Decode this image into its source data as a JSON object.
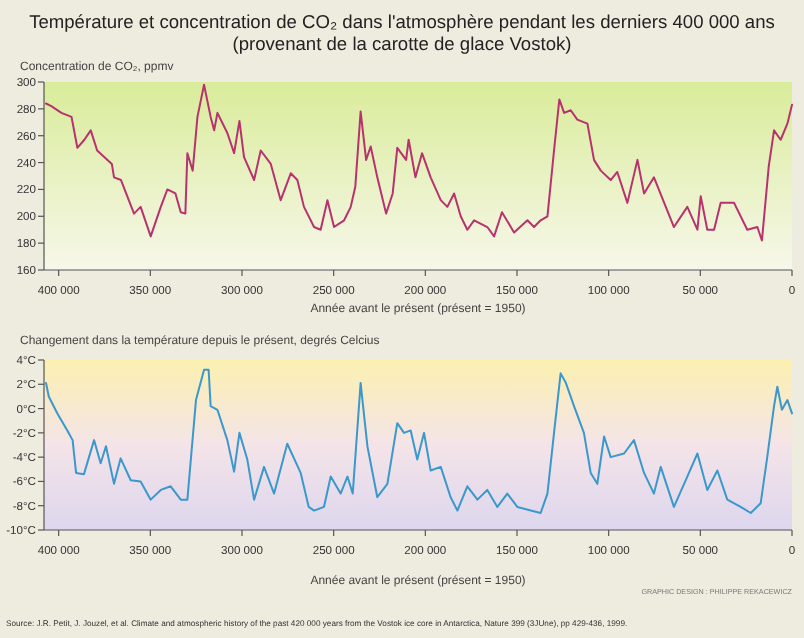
{
  "chart_data": [
    {
      "type": "line",
      "title": "Température et concentration de CO₂ dans l'atmosphère pendant les derniers 400 000 ans",
      "subtitle": "(provenant de la carotte de glace Vostok)",
      "ylabel": "Concentration de CO₂, ppmv",
      "xlabel": "Année avant le présent (présent = 1950)",
      "xlim": [
        408000,
        0
      ],
      "xticks": [
        {
          "value": 400000,
          "label": "400 000"
        },
        {
          "value": 350000,
          "label": "350 000"
        },
        {
          "value": 300000,
          "label": "300 000"
        },
        {
          "value": 250000,
          "label": "250 000"
        },
        {
          "value": 200000,
          "label": "200 000"
        },
        {
          "value": 150000,
          "label": "150 000"
        },
        {
          "value": 100000,
          "label": "100 000"
        },
        {
          "value": 50000,
          "label": "50 000"
        },
        0
      ],
      "ylim": [
        160,
        300
      ],
      "yticks": [
        160,
        180,
        200,
        220,
        240,
        260,
        280,
        300
      ],
      "grid": false,
      "series": [
        {
          "color": "#b8326e",
          "x": [
            406900,
            404000,
            398500,
            393000,
            389800,
            386000,
            382500,
            379000,
            375000,
            371000,
            369800,
            366000,
            358900,
            355300,
            349800,
            344300,
            340700,
            336300,
            333400,
            330900,
            329800,
            326900,
            324300,
            320700,
            317100,
            315200,
            313400,
            308000,
            304300,
            301400,
            298900,
            293400,
            289800,
            284300,
            278900,
            273400,
            269800,
            266200,
            260700,
            257100,
            253400,
            249800,
            244300,
            240700,
            238200,
            235300,
            232300,
            229800,
            226200,
            221400,
            217800,
            215300,
            210500,
            209100,
            205400,
            201800,
            197100,
            191600,
            188000,
            184300,
            180700,
            177100,
            173400,
            166200,
            162500,
            158200,
            151600,
            144300,
            140700,
            137100,
            133400,
            129800,
            126900,
            124300,
            120700,
            117100,
            111600,
            108000,
            104300,
            98900,
            95300,
            89800,
            84300,
            80700,
            75300,
            64400,
            57100,
            51600,
            49800,
            46200,
            42500,
            38900,
            31600,
            24400,
            18900,
            16400,
            12700,
            9800,
            6200,
            2500,
            0
          ],
          "values": [
            284,
            282,
            277,
            274,
            251,
            257,
            264,
            249,
            244,
            239,
            229,
            227,
            202,
            207,
            185,
            207,
            220,
            217,
            203,
            202,
            247,
            234,
            274,
            298,
            274,
            264,
            277,
            262,
            247,
            271,
            244,
            227,
            249,
            239,
            212,
            232,
            227,
            207,
            192,
            190,
            212,
            192,
            197,
            207,
            222,
            278,
            242,
            252,
            229,
            202,
            217,
            251,
            242,
            257,
            229,
            247,
            229,
            212,
            207,
            217,
            200,
            190,
            197,
            192,
            185,
            203,
            188,
            197,
            192,
            197,
            200,
            249,
            287,
            277,
            279,
            272,
            269,
            242,
            234,
            227,
            233,
            210,
            242,
            217,
            229,
            192,
            207,
            190,
            215,
            190,
            190,
            210,
            210,
            190,
            192,
            182,
            237,
            264,
            257,
            269,
            283
          ]
        }
      ]
    },
    {
      "type": "line",
      "ylabel": "Changement dans la température depuis le présent, degrés Celcius",
      "xlabel": "Année avant le présent (présent = 1950)",
      "xlim": [
        408000,
        0
      ],
      "xticks": [
        {
          "value": 400000,
          "label": "400 000"
        },
        {
          "value": 350000,
          "label": "350 000"
        },
        {
          "value": 300000,
          "label": "300 000"
        },
        {
          "value": 250000,
          "label": "250 000"
        },
        {
          "value": 200000,
          "label": "200 000"
        },
        {
          "value": 150000,
          "label": "150 000"
        },
        {
          "value": 100000,
          "label": "100 000"
        },
        {
          "value": 50000,
          "label": "50 000"
        },
        0
      ],
      "ylim": [
        -10,
        4
      ],
      "yticks": [
        {
          "value": -10,
          "label": "-10°C"
        },
        {
          "value": -8,
          "label": "-8°C"
        },
        {
          "value": -6,
          "label": "-6°C"
        },
        {
          "value": -4,
          "label": "-4°C"
        },
        {
          "value": -2,
          "label": "-2°C"
        },
        {
          "value": 0,
          "label": "0°C"
        },
        {
          "value": 2,
          "label": "2°C"
        },
        {
          "value": 4,
          "label": "4°C"
        }
      ],
      "grid": false,
      "annotations": [
        "GRAPHIC DESIGN : PHILIPPE REKACEWICZ",
        "Source: J.R. Petit, J. Jouzel, et al. Climate and atmospheric history of the past 420 000 years from the Vostok ice core in Antarctica, Nature 399 (3JUne), pp 429-436, 1999."
      ],
      "series": [
        {
          "color": "#3a98cc",
          "x": [
            406900,
            405400,
            400700,
            395300,
            392400,
            390500,
            386200,
            380700,
            377100,
            374200,
            369800,
            366200,
            360700,
            355300,
            349800,
            344300,
            338900,
            333400,
            329800,
            325100,
            320700,
            318200,
            317100,
            313400,
            308000,
            304300,
            301400,
            297100,
            293400,
            288000,
            282500,
            275300,
            268000,
            263600,
            260700,
            255300,
            251600,
            246200,
            242500,
            239600,
            235300,
            231600,
            226200,
            220700,
            215300,
            211600,
            208000,
            204400,
            200700,
            197100,
            191600,
            186200,
            182500,
            177100,
            171600,
            166200,
            160700,
            155300,
            149800,
            142500,
            137100,
            133400,
            129800,
            126200,
            123300,
            118900,
            113500,
            109800,
            106200,
            102500,
            98900,
            91600,
            86200,
            80700,
            75300,
            71600,
            64400,
            57100,
            51600,
            46200,
            40700,
            35300,
            28000,
            22500,
            17100,
            13500,
            9800,
            8000,
            5500,
            2500,
            0
          ],
          "values": [
            2.1,
            1.0,
            -0.4,
            -1.8,
            -2.6,
            -5.3,
            -5.4,
            -2.6,
            -4.5,
            -3.1,
            -6.2,
            -4.1,
            -5.9,
            -6.0,
            -7.5,
            -6.7,
            -6.4,
            -7.5,
            -7.5,
            0.7,
            3.2,
            3.2,
            0.2,
            -0.1,
            -2.6,
            -5.2,
            -2.0,
            -4.2,
            -7.5,
            -4.8,
            -7.0,
            -2.9,
            -5.3,
            -8.1,
            -8.4,
            -8.1,
            -5.6,
            -7.0,
            -5.6,
            -7.0,
            2.1,
            -3.1,
            -7.3,
            -6.2,
            -1.2,
            -2.0,
            -1.8,
            -4.2,
            -2.0,
            -5.1,
            -4.8,
            -7.3,
            -8.4,
            -6.4,
            -7.5,
            -6.7,
            -8.1,
            -7.0,
            -8.1,
            -8.4,
            -8.6,
            -7.0,
            -2.0,
            2.9,
            2.1,
            0.2,
            -2.0,
            -5.3,
            -6.2,
            -2.3,
            -4.0,
            -3.7,
            -2.6,
            -5.3,
            -7.0,
            -4.8,
            -8.1,
            -5.6,
            -3.7,
            -6.7,
            -5.1,
            -7.5,
            -8.1,
            -8.6,
            -7.8,
            -4.0,
            0.2,
            1.8,
            -0.1,
            0.7,
            -0.4
          ]
        }
      ]
    }
  ]
}
